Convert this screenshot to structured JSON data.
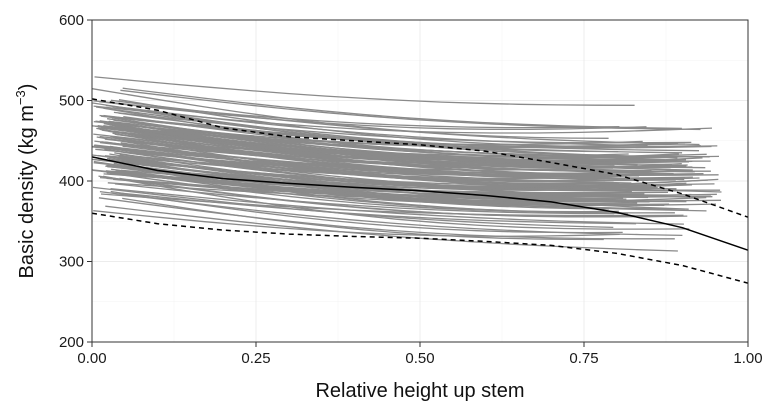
{
  "chart_data": {
    "type": "line",
    "title": "",
    "xlabel": "Relative height up stem",
    "ylabel_main": "Basic density (kg m",
    "ylabel_exp": "−3",
    "ylabel_close": ")",
    "xlim": [
      0,
      1
    ],
    "ylim": [
      200,
      600
    ],
    "x_ticks": [
      0,
      0.25,
      0.5,
      0.75,
      1
    ],
    "x_tick_labels": [
      "0.00",
      "0.25",
      "0.50",
      "0.75",
      "1.00"
    ],
    "y_ticks": [
      200,
      300,
      400,
      500,
      600
    ],
    "y_tick_labels": [
      "200",
      "300",
      "400",
      "500",
      "600"
    ],
    "grid": true,
    "individual_profiles": {
      "color": "#8a8a8a",
      "count": 150,
      "x_start_range": [
        0.0,
        0.05
      ],
      "x_end_range": [
        0.78,
        0.96
      ],
      "start_density_range": [
        345,
        545
      ],
      "mean_slope_per_unit_height": -45
    },
    "series": [
      {
        "style": "solid",
        "color": "#000000",
        "x": [
          0,
          0.1,
          0.2,
          0.3,
          0.4,
          0.5,
          0.6,
          0.7,
          0.8,
          0.9,
          1.0
        ],
        "y": [
          430,
          413,
          403,
          397,
          392,
          388,
          382,
          374,
          361,
          342,
          314
        ]
      },
      {
        "style": "dashed",
        "color": "#000000",
        "x": [
          0,
          0.1,
          0.2,
          0.3,
          0.4,
          0.5,
          0.6,
          0.7,
          0.8,
          0.9,
          1.0
        ],
        "y": [
          502,
          488,
          466,
          455,
          450,
          445,
          437,
          423,
          408,
          384,
          355
        ]
      },
      {
        "style": "dashed",
        "color": "#000000",
        "x": [
          0,
          0.1,
          0.2,
          0.3,
          0.4,
          0.5,
          0.6,
          0.7,
          0.8,
          0.9,
          1.0
        ],
        "y": [
          360,
          347,
          339,
          334,
          331,
          329,
          325,
          320,
          310,
          295,
          273
        ]
      }
    ]
  }
}
